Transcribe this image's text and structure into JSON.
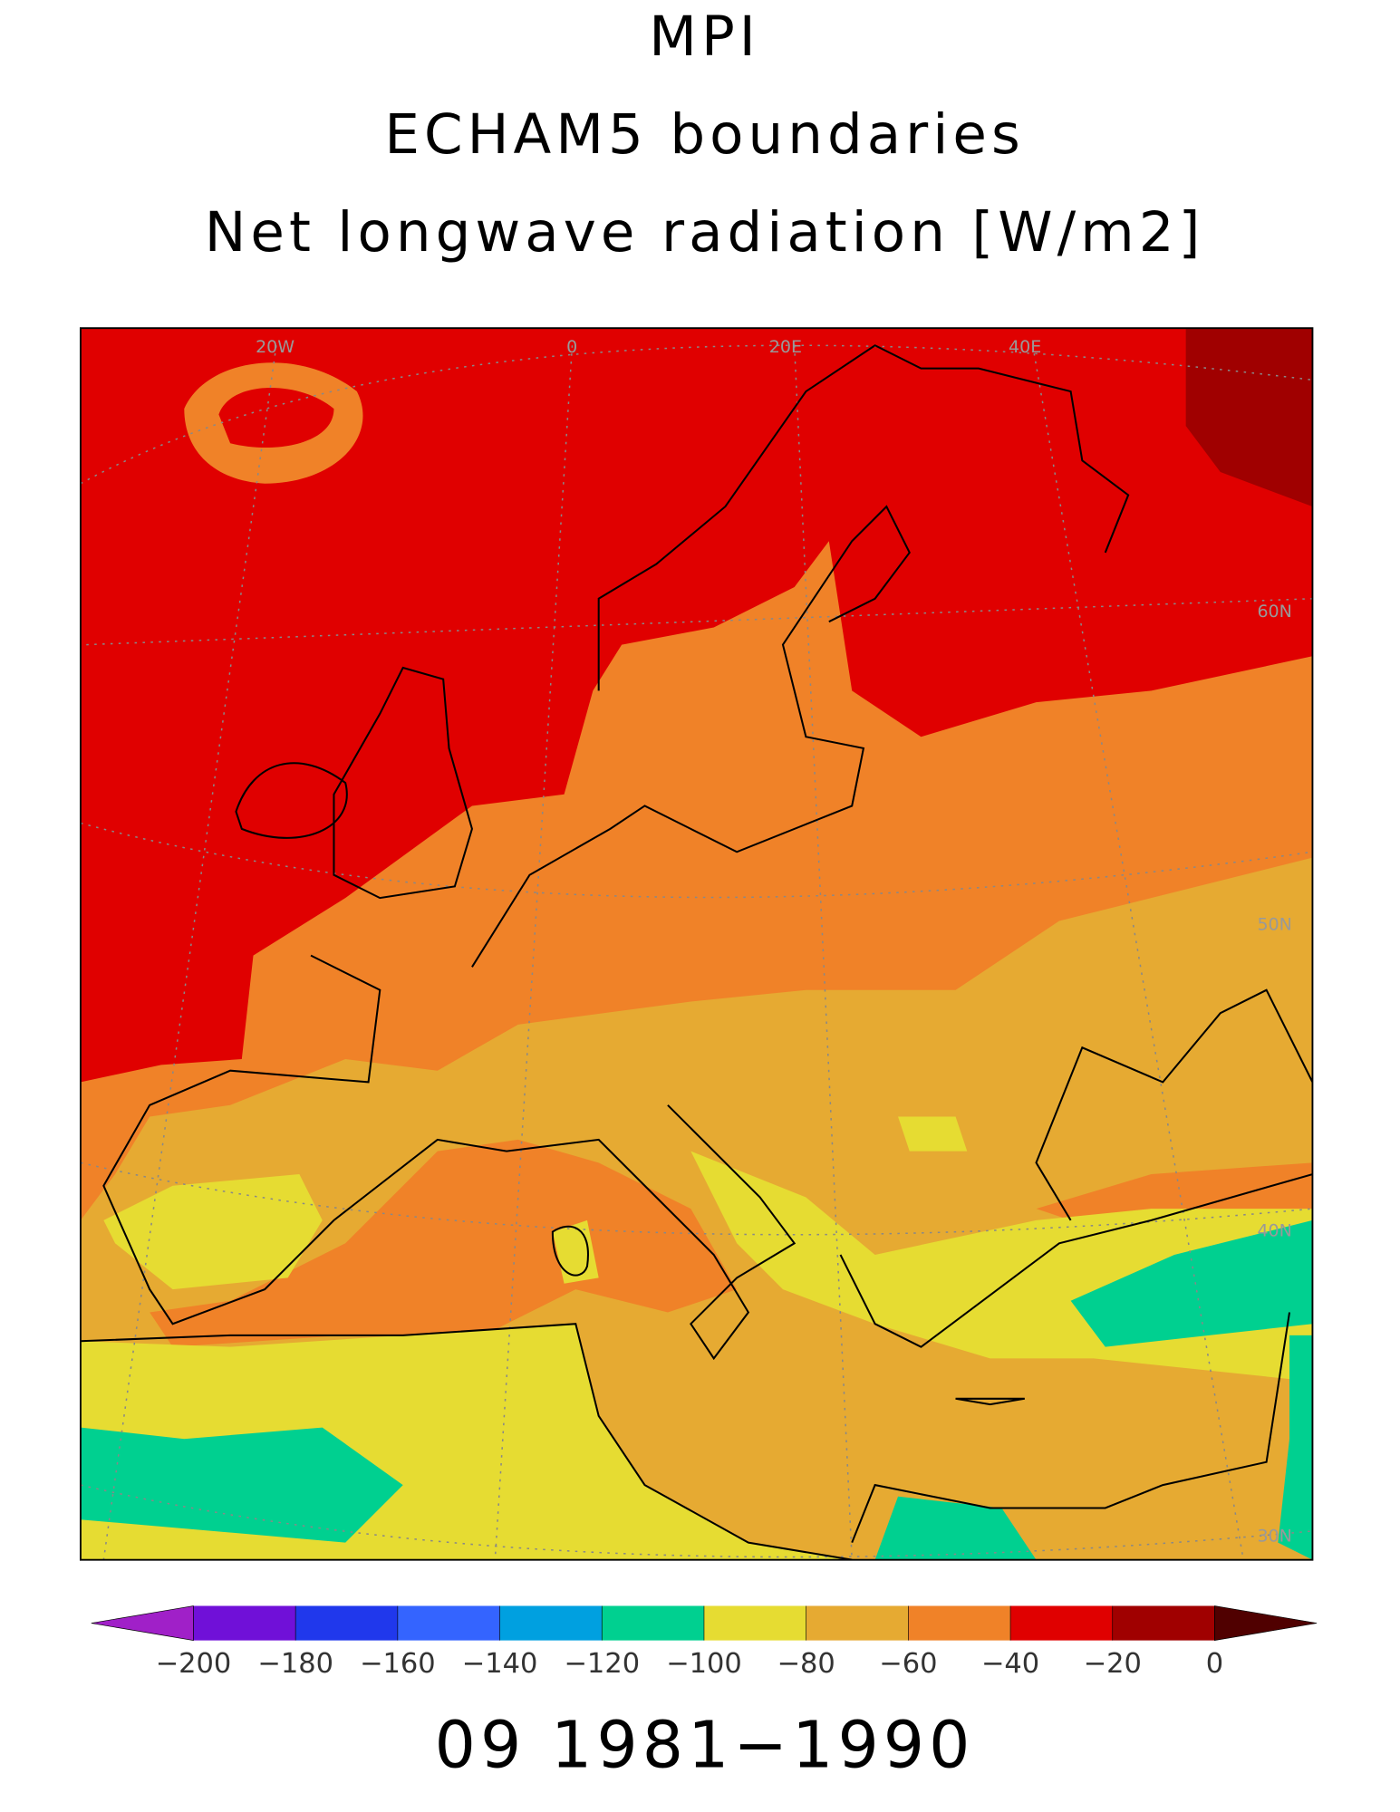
{
  "title": [
    "MPI",
    "ECHAM5 boundaries",
    "Net longwave radiation [W/m2]"
  ],
  "map": {
    "graticule_labels": [
      "20W",
      "0",
      "20E",
      "40E",
      "60N",
      "50N",
      "40N",
      "30N"
    ]
  },
  "colorbar": {
    "ticks": [
      {
        "value": -200,
        "label": "−200"
      },
      {
        "value": -180,
        "label": "−180"
      },
      {
        "value": -160,
        "label": "−160"
      },
      {
        "value": -140,
        "label": "−140"
      },
      {
        "value": -120,
        "label": "−120"
      },
      {
        "value": -100,
        "label": "−100"
      },
      {
        "value": -80,
        "label": "−80"
      },
      {
        "value": -60,
        "label": "−60"
      },
      {
        "value": -40,
        "label": "−40"
      },
      {
        "value": -20,
        "label": "−20"
      },
      0
    ],
    "colors": [
      "#a020c8",
      "#7010d8",
      "#2038ec",
      "#3464ff",
      "#00a0e0",
      "#00d090",
      "#e6dc32",
      "#e6aa32",
      "#f08228",
      "#e00000",
      "#a00000",
      "#500000"
    ]
  },
  "footer": "09 1981−1990"
}
